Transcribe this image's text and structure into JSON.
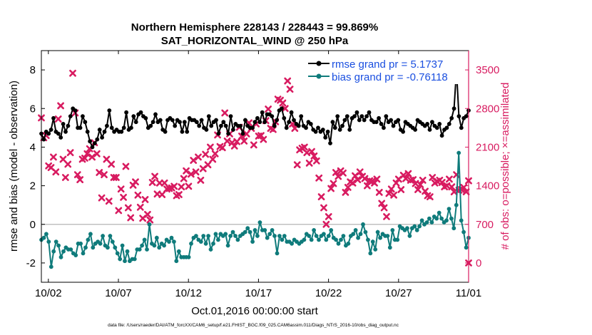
{
  "colors": {
    "rmse": "#000000",
    "bias": "#0f7b7b",
    "obs": "#d81b60",
    "zero_line": "#c0c0c0",
    "frame": "#000000"
  },
  "chart_data": {
    "type": "line",
    "title_line1": "Northern Hemisphere 228143 / 228443 = 99.869%",
    "title_line2": "SAT_HORIZONTAL_WIND @ 250 hPa",
    "xlabel": "Oct.01,2016 00:00:00 start",
    "ylabel_left": "rmse and bias (model - observation)",
    "ylabel_right": "# of obs: o=possible; ×=assimilated",
    "footnote": "data file: /Users/raeder/DAI/ATM_forcXX/CAM6_setup/f.e21.FHIST_BGC.f09_025.CAM6assim.011/Diags_NTrS_2016-10/obs_diag_output.nc",
    "x_ticks": [
      {
        "day": 1,
        "label": "10/02"
      },
      {
        "day": 6,
        "label": "10/07"
      },
      {
        "day": 11,
        "label": "10/12"
      },
      {
        "day": 16,
        "label": "10/17"
      },
      {
        "day": 21,
        "label": "10/22"
      },
      {
        "day": 26,
        "label": "10/27"
      },
      {
        "day": 31,
        "label": "11/01"
      }
    ],
    "xlim": [
      0.5,
      31.0
    ],
    "ylim_left": [
      -3,
      9
    ],
    "ylim_right": [
      -350,
      3850
    ],
    "y_ticks_left": [
      "-2",
      "0",
      "2",
      "4",
      "6",
      "8"
    ],
    "y_ticks_right": [
      "0",
      "700",
      "1400",
      "2100",
      "2800",
      "3500"
    ],
    "legend": {
      "placement": "top-right",
      "entries": [
        "rmse grand pr = 5.1737",
        "bias grand pr = -0.76118"
      ]
    },
    "series": [
      {
        "name": "rmse grand pr = 5.1737",
        "axis": "left",
        "values": [
          4.7,
          4.4,
          4.8,
          4.7,
          4.9,
          5.5,
          4.8,
          4.7,
          4.5,
          5.2,
          4.8,
          5.1,
          5.6,
          6.0,
          5.9,
          5.0,
          5.0,
          5.6,
          5.3,
          4.8,
          4.3,
          4.0,
          4.2,
          4.4,
          4.9,
          4.5,
          4.8,
          5.1,
          5.9,
          5.0,
          4.8,
          4.9,
          4.8,
          4.8,
          5.0,
          5.8,
          4.9,
          5.0,
          5.6,
          5.3,
          5.7,
          5.8,
          5.6,
          5.5,
          5.0,
          5.1,
          5.3,
          5.7,
          5.3,
          5.4,
          4.9,
          4.8,
          5.4,
          5.5,
          5.4,
          5.1,
          5.4,
          5.3,
          4.8,
          5.3,
          4.8,
          5.5,
          5.4,
          5.4,
          5.3,
          5.1,
          5.4,
          5.0,
          4.9,
          5.6,
          5.1,
          5.3,
          5.4,
          4.7,
          5.1,
          5.3,
          5.1,
          4.7,
          5.6,
          4.9,
          5.2,
          5.1,
          5.1,
          4.7,
          5.4,
          5.1,
          5.0,
          5.0,
          5.3,
          5.5,
          5.3,
          5.8,
          5.3,
          5.7,
          5.7,
          5.6,
          5.1,
          5.4,
          5.9,
          6.0,
          5.5,
          5.0,
          5.3,
          5.8,
          5.4,
          5.2,
          5.1,
          5.6,
          5.1,
          5.0,
          5.3,
          5.2,
          4.9,
          4.8,
          5.0,
          4.8,
          4.9,
          4.5,
          4.8,
          4.2,
          5.3,
          5.0,
          5.6,
          4.9,
          5.1,
          5.4,
          5.6,
          4.9,
          5.5,
          5.6,
          5.8,
          5.4,
          5.6,
          5.4,
          5.6,
          5.8,
          5.4,
          5.3,
          5.3,
          5.5,
          5.2,
          5.0,
          5.6,
          5.3,
          5.4,
          5.1,
          5.3,
          5.4,
          4.9,
          4.8,
          5.3,
          5.2,
          5.1,
          5.0,
          4.9,
          5.4,
          5.3,
          5.2,
          5.1,
          5.2,
          4.9,
          5.3,
          5.1,
          5.0,
          5.2,
          4.6,
          4.9,
          5.0,
          5.2,
          5.5,
          6.0,
          8.0,
          5.6,
          5.0,
          5.5,
          5.6,
          5.9
        ]
      },
      {
        "name": "bias grand pr = -0.76118",
        "axis": "left",
        "values": [
          -0.8,
          -0.7,
          -0.5,
          -0.9,
          -2.2,
          -1.4,
          -0.9,
          -1.1,
          -1.7,
          -1.4,
          -1.2,
          -1.3,
          -1.3,
          -1.5,
          -1.6,
          -1.0,
          -1.0,
          -1.5,
          -1.2,
          -0.8,
          -0.5,
          -1.2,
          -1.0,
          -0.9,
          -1.0,
          -0.6,
          -1.1,
          -1.2,
          -0.6,
          -0.9,
          -1.2,
          -1.5,
          -1.8,
          -1.1,
          -1.9,
          -1.4,
          -1.9,
          -1.8,
          -1.8,
          -1.3,
          -1.3,
          -1.1,
          -0.8,
          -1.3,
          0.0,
          -1.0,
          -1.1,
          -0.7,
          -1.2,
          -1.0,
          -1.1,
          -0.8,
          -0.9,
          -0.7,
          -0.9,
          -1.9,
          -1.4,
          -1.7,
          -1.7,
          -1.7,
          -1.7,
          -1.0,
          -0.7,
          -0.6,
          -0.8,
          -0.9,
          -0.6,
          -1.0,
          -0.6,
          -1.3,
          -1.0,
          -0.5,
          -0.8,
          -0.5,
          -0.6,
          -0.5,
          -1.1,
          -0.6,
          -0.4,
          -0.6,
          -0.8,
          -0.6,
          -0.5,
          -0.4,
          -0.2,
          -0.4,
          -0.9,
          -0.3,
          -0.6,
          0.1,
          -0.3,
          -0.3,
          -0.7,
          -0.5,
          -0.3,
          -0.6,
          -1.5,
          -0.6,
          -0.8,
          -0.6,
          -0.9,
          -0.9,
          -1.0,
          -0.8,
          -0.9,
          -1.0,
          -0.9,
          -0.8,
          -0.5,
          -0.6,
          -0.8,
          -0.3,
          -0.6,
          -0.8,
          -0.6,
          -0.5,
          -0.8,
          -0.6,
          -0.3,
          -0.7,
          -0.8,
          -1.0,
          -0.8,
          -0.6,
          -1.1,
          -1.0,
          -0.6,
          -0.5,
          -0.3,
          -0.7,
          -0.5,
          0.0,
          -0.4,
          -0.8,
          -1.5,
          -0.9,
          -1.3,
          -0.4,
          -0.7,
          -0.5,
          -0.6,
          -0.6,
          -1.2,
          -0.3,
          -0.8,
          -0.8,
          -0.1,
          -0.2,
          -0.3,
          -0.2,
          -0.6,
          -0.2,
          -0.1,
          -0.3,
          -0.1,
          0.2,
          0.0,
          0.1,
          0.3,
          0.1,
          0.4,
          0.3,
          0.6,
          0.3,
          0.1,
          0.2,
          0.8,
          0.3,
          -0.2,
          1.0,
          3.7,
          0.2,
          -0.4,
          -1.2,
          -0.7
        ]
      },
      {
        "name": "",
        "axis": "right",
        "marker": "x",
        "values": [
          2630,
          2270,
          2310,
          1760,
          1730,
          1920,
          1650,
          2610,
          2850,
          1880,
          1550,
          1790,
          2000,
          3440,
          2720,
          1600,
          1510,
          1880,
          1900,
          1980,
          2070,
          1920,
          2180,
          1980,
          1640,
          1180,
          1600,
          1880,
          1120,
          1790,
          1550,
          1550,
          950,
          1340,
          1190,
          1750,
          1000,
          820,
          1410,
          1470,
          1230,
          1010,
          810,
          1150,
          880,
          780,
          1460,
          1570,
          1250,
          1450,
          1240,
          1450,
          1340,
          1350,
          1360,
          1390,
          1220,
          1240,
          1380,
          1530,
          1670,
          1390,
          1610,
          1860,
          1650,
          1920,
          1500,
          1710,
          1970,
          1780,
          2100,
          1880,
          1980,
          2320,
          2110,
          2090,
          2720,
          2210,
          2340,
          2180,
          2120,
          2200,
          2460,
          2300,
          2210,
          2340,
          2540,
          2440,
          2140,
          2520,
          2300,
          2310,
          2240,
          2580,
          2790,
          2440,
          2420,
          2560,
          2970,
          2950,
          2900,
          2800,
          3300,
          3150,
          2520,
          2440,
          1780,
          2050,
          2080,
          2100,
          2000,
          1810,
          2020,
          1940,
          1850,
          1540,
          1200,
          1000,
          700,
          840,
          1350,
          1440,
          1640,
          1570,
          1670,
          1630,
          1280,
          1370,
          1470,
          1450,
          1580,
          1510,
          1650,
          1570,
          1530,
          1400,
          1490,
          1480,
          1450,
          1520,
          1280,
          1080,
          1000,
          840,
          1260,
          1340,
          1230,
          1450,
          1520,
          1330,
          1590,
          1530,
          1620,
          1500,
          1510,
          1440,
          1330,
          1420,
          1500,
          1300,
          1220,
          1200,
          1550,
          1450,
          1480,
          1500,
          1460,
          1380,
          1400,
          1520,
          1380,
          1290,
          1600,
          1320,
          1330,
          1370,
          1290,
          1490
        ]
      }
    ],
    "obs_tail_zero": {
      "day": 31.0,
      "value": 0
    }
  }
}
